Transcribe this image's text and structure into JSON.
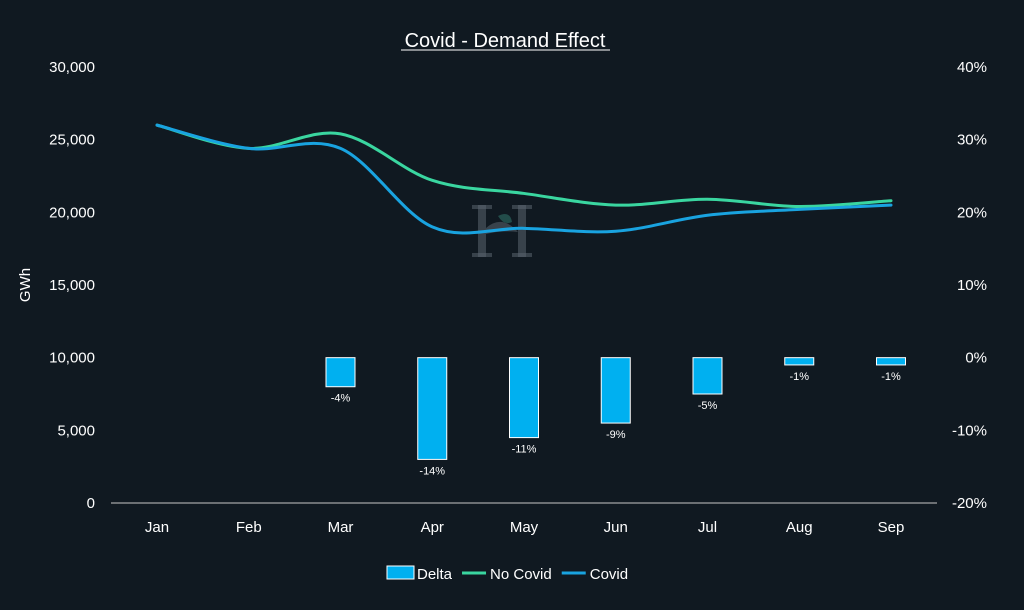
{
  "chart_data": {
    "type": "bar+line",
    "title": "Covid - Demand Effect",
    "categories": [
      "Jan",
      "Feb",
      "Mar",
      "Apr",
      "May",
      "Jun",
      "Jul",
      "Aug",
      "Sep"
    ],
    "ylabel_left": "GWh",
    "ylim_left": [
      0,
      30000
    ],
    "yticks_left": [
      "30,000",
      "25,000",
      "20,000",
      "15,000",
      "10,000",
      "5,000",
      "0"
    ],
    "ylim_right": [
      -20,
      40
    ],
    "yticks_right": [
      "40%",
      "30%",
      "20%",
      "10%",
      "0%",
      "-10%",
      "-20%"
    ],
    "grid": false,
    "legend_position": "bottom",
    "series": [
      {
        "name": "Delta",
        "kind": "bar",
        "axis": "right",
        "color": "#00b0f0",
        "values": [
          null,
          null,
          -4,
          -14,
          -11,
          -9,
          -5,
          -1,
          -1
        ],
        "labels": [
          "",
          "",
          "-4%",
          "-14%",
          "-11%",
          "-9%",
          "-5%",
          "-1%",
          "-1%"
        ]
      },
      {
        "name": "No Covid",
        "kind": "line",
        "axis": "left",
        "color": "#3ad6a0",
        "values": [
          26000,
          24400,
          25400,
          22200,
          21300,
          20500,
          20900,
          20400,
          20800
        ]
      },
      {
        "name": "Covid",
        "kind": "line",
        "axis": "left",
        "color": "#19a3e0",
        "values": [
          26000,
          24400,
          24400,
          19000,
          18900,
          18700,
          19800,
          20200,
          20500
        ]
      }
    ]
  }
}
